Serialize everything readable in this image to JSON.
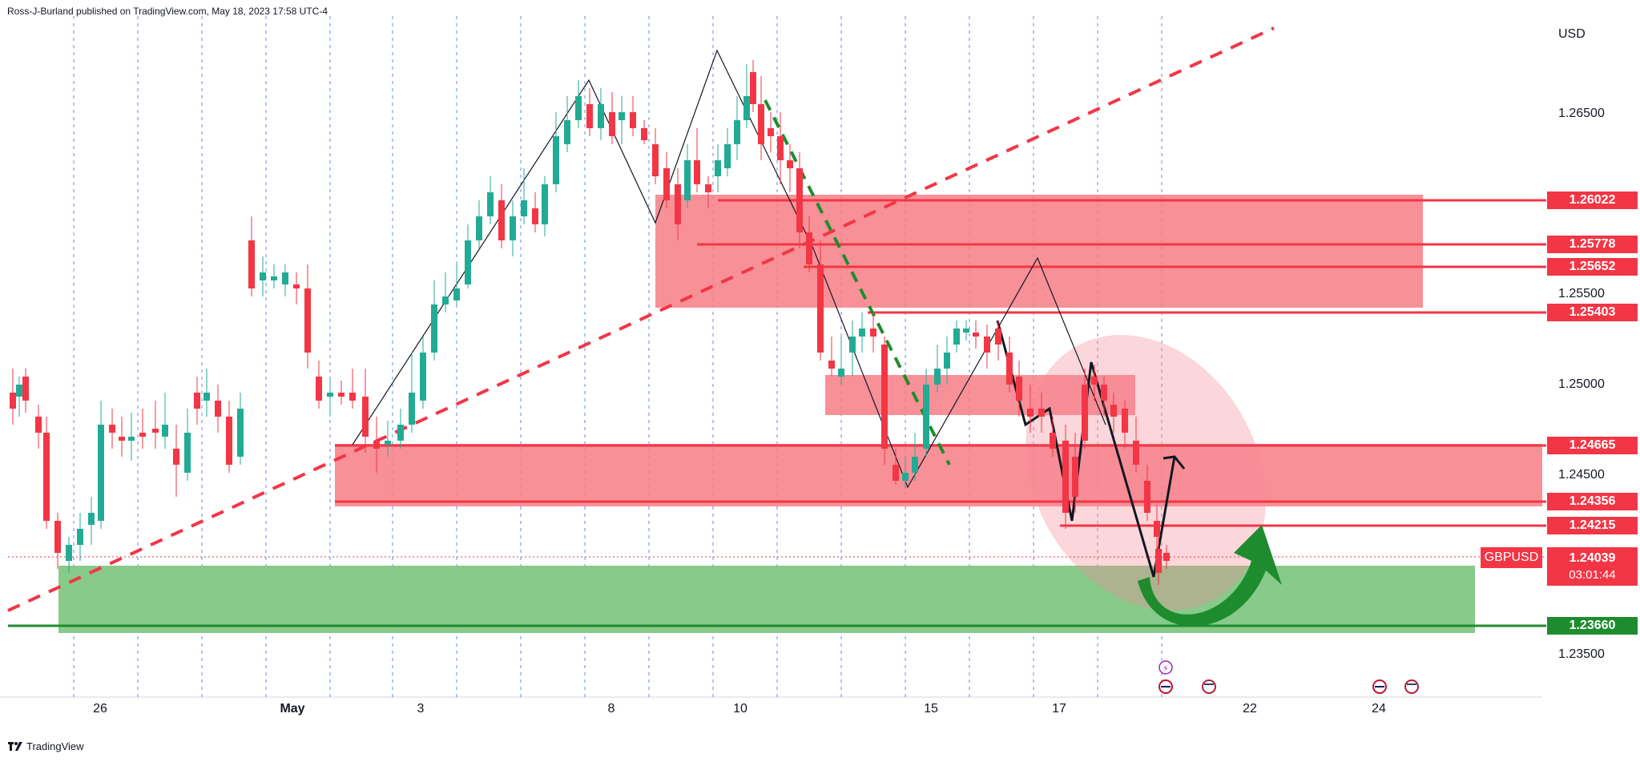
{
  "header": {
    "publisher_text": "Ross-J-Burland published on TradingView.com, May 18, 2023 17:58 UTC-4"
  },
  "currency": "USD",
  "symbol": "GBPUSD",
  "last_price": {
    "value": "1.24039",
    "countdown": "03:01:44"
  },
  "price_axis": [
    "1.26500",
    "1.25500",
    "1.25000",
    "1.24500",
    "1.23500"
  ],
  "level_tags": [
    {
      "label": "1.26022",
      "color": "red"
    },
    {
      "label": "1.25778",
      "color": "red"
    },
    {
      "label": "1.25652",
      "color": "red"
    },
    {
      "label": "1.25403",
      "color": "red"
    },
    {
      "label": "1.24665",
      "color": "red"
    },
    {
      "label": "1.24356",
      "color": "red"
    },
    {
      "label": "1.24215",
      "color": "red"
    },
    {
      "label": "1.23660",
      "color": "green"
    }
  ],
  "time_axis": [
    "26",
    "May",
    "3",
    "8",
    "10",
    "15",
    "17",
    "22",
    "24"
  ],
  "footer": {
    "brand": "TradingView"
  },
  "colors": {
    "bull": "#22ab94",
    "bear": "#f23645",
    "zone_red": "#f77c86",
    "zone_green": "#81c784",
    "grid": "#2962ff"
  },
  "event_icons": [
    "flash-icon",
    "uk-flag-icon",
    "us-flag-icon",
    "uk-flag-icon",
    "us-flag-icon"
  ]
}
